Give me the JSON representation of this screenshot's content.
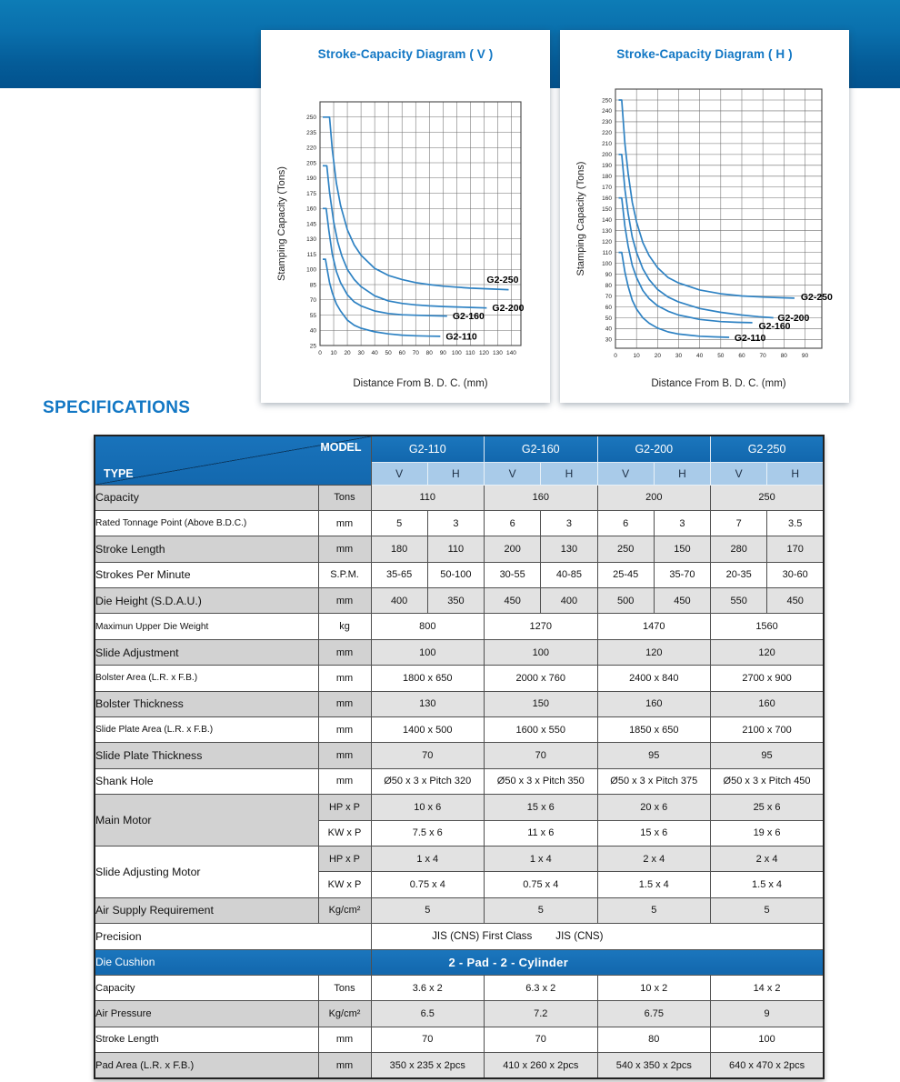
{
  "page": {
    "banner_color_top": "#0d7cb6",
    "banner_color_bottom": "#02528e",
    "accent_blue": "#1277c4",
    "header_blue": "#1571b8",
    "subheader_blue": "#a9cbe9",
    "curve_color": "#2e82c3"
  },
  "spec_heading": "SPECIFICATIONS",
  "chart_data": [
    {
      "id": "v",
      "type": "line",
      "title": "Stroke-Capacity Diagram ( V )",
      "xlabel": "Distance From B. D. C. (mm)",
      "ylabel": "Stamping Capacity  (Tons)",
      "x_ticks": [
        0,
        10,
        20,
        30,
        40,
        50,
        60,
        70,
        80,
        90,
        100,
        110,
        120,
        130,
        140
      ],
      "y_ticks": [
        25,
        40,
        55,
        70,
        85,
        100,
        115,
        130,
        145,
        160,
        175,
        190,
        205,
        220,
        235,
        250
      ],
      "x_range": [
        0,
        147
      ],
      "y_range": [
        25,
        265
      ],
      "grid": true,
      "series": [
        {
          "name": "G2-110",
          "label_at": [
            92,
            34
          ],
          "points": [
            [
              2,
              110
            ],
            [
              4,
              110
            ],
            [
              5.5,
              98
            ],
            [
              7,
              87
            ],
            [
              9,
              77
            ],
            [
              12,
              66
            ],
            [
              15,
              59
            ],
            [
              20,
              50
            ],
            [
              25,
              45
            ],
            [
              30,
              42
            ],
            [
              40,
              38.5
            ],
            [
              50,
              36.5
            ],
            [
              60,
              35.2
            ],
            [
              70,
              34.6
            ],
            [
              80,
              34.2
            ],
            [
              88,
              34
            ]
          ]
        },
        {
          "name": "G2-160",
          "label_at": [
            97,
            54
          ],
          "points": [
            [
              2,
              160
            ],
            [
              4.5,
              160
            ],
            [
              6.5,
              138
            ],
            [
              9,
              115
            ],
            [
              12,
              98
            ],
            [
              15,
              87
            ],
            [
              20,
              75
            ],
            [
              25,
              68
            ],
            [
              30,
              64
            ],
            [
              40,
              59
            ],
            [
              50,
              56.5
            ],
            [
              60,
              55.3
            ],
            [
              70,
              54.8
            ],
            [
              80,
              54.4
            ],
            [
              93,
              54
            ]
          ]
        },
        {
          "name": "G2-200",
          "label_at": [
            126,
            62
          ],
          "points": [
            [
              2,
              202
            ],
            [
              5,
              202
            ],
            [
              7,
              176
            ],
            [
              10,
              147
            ],
            [
              13,
              127
            ],
            [
              16,
              113
            ],
            [
              20,
              100
            ],
            [
              25,
              90
            ],
            [
              30,
              83
            ],
            [
              40,
              74
            ],
            [
              50,
              69
            ],
            [
              60,
              66.5
            ],
            [
              70,
              65
            ],
            [
              80,
              64
            ],
            [
              90,
              63.4
            ],
            [
              100,
              63
            ],
            [
              110,
              62.5
            ],
            [
              122,
              62
            ]
          ]
        },
        {
          "name": "G2-250",
          "label_at": [
            122,
            90
          ],
          "points": [
            [
              2,
              250
            ],
            [
              7,
              250
            ],
            [
              9,
              218
            ],
            [
              12,
              185
            ],
            [
              15,
              163
            ],
            [
              20,
              139
            ],
            [
              25,
              124
            ],
            [
              30,
              114
            ],
            [
              40,
              101
            ],
            [
              50,
              94
            ],
            [
              60,
              90
            ],
            [
              70,
              87
            ],
            [
              80,
              85
            ],
            [
              90,
              83.5
            ],
            [
              100,
              82.5
            ],
            [
              110,
              81.5
            ],
            [
              120,
              81
            ],
            [
              130,
              80.4
            ],
            [
              138,
              80
            ]
          ]
        }
      ]
    },
    {
      "id": "h",
      "type": "line",
      "title": "Stroke-Capacity Diagram ( H )",
      "xlabel": "Distance From B. D. C. (mm)",
      "ylabel": "Stamping Capacity  (Tons)",
      "x_ticks": [
        0,
        10,
        20,
        30,
        40,
        50,
        60,
        70,
        80,
        90
      ],
      "y_ticks": [
        30,
        40,
        50,
        60,
        70,
        80,
        90,
        100,
        110,
        120,
        130,
        140,
        150,
        160,
        170,
        180,
        190,
        200,
        210,
        220,
        230,
        240,
        250
      ],
      "x_range": [
        0,
        98
      ],
      "y_range": [
        22,
        260
      ],
      "grid": true,
      "series": [
        {
          "name": "G2-110",
          "label_at": [
            56.5,
            31.5
          ],
          "points": [
            [
              1.5,
              110
            ],
            [
              3,
              110
            ],
            [
              4.5,
              92
            ],
            [
              6,
              79
            ],
            [
              8,
              66
            ],
            [
              10,
              58
            ],
            [
              13,
              50
            ],
            [
              16,
              45
            ],
            [
              20,
              40.5
            ],
            [
              25,
              37
            ],
            [
              30,
              35
            ],
            [
              40,
              33
            ],
            [
              47,
              32.4
            ],
            [
              54,
              32
            ]
          ]
        },
        {
          "name": "G2-160",
          "label_at": [
            68,
            42.5
          ],
          "points": [
            [
              1.5,
              160
            ],
            [
              3,
              160
            ],
            [
              4.5,
              134
            ],
            [
              6,
              116
            ],
            [
              8,
              98
            ],
            [
              10,
              87
            ],
            [
              13,
              75
            ],
            [
              16,
              67.5
            ],
            [
              20,
              61
            ],
            [
              25,
              56
            ],
            [
              30,
              52.5
            ],
            [
              40,
              48.5
            ],
            [
              50,
              46.5
            ],
            [
              58,
              45.8
            ],
            [
              65,
              45.5
            ]
          ]
        },
        {
          "name": "G2-200",
          "label_at": [
            77,
            50
          ],
          "points": [
            [
              1.5,
              200
            ],
            [
              3,
              200
            ],
            [
              4.5,
              168
            ],
            [
              6,
              146
            ],
            [
              8,
              124
            ],
            [
              10,
              110
            ],
            [
              13,
              95
            ],
            [
              16,
              85
            ],
            [
              20,
              76
            ],
            [
              25,
              69
            ],
            [
              30,
              64.5
            ],
            [
              40,
              58.5
            ],
            [
              50,
              55
            ],
            [
              60,
              52.5
            ],
            [
              68,
              51
            ],
            [
              75,
              50
            ]
          ]
        },
        {
          "name": "G2-250",
          "label_at": [
            88,
            69
          ],
          "points": [
            [
              1.5,
              250
            ],
            [
              3,
              250
            ],
            [
              4.5,
              210
            ],
            [
              6,
              183
            ],
            [
              8,
              156
            ],
            [
              10,
              138
            ],
            [
              13,
              119
            ],
            [
              16,
              107
            ],
            [
              20,
              96
            ],
            [
              25,
              87
            ],
            [
              30,
              82
            ],
            [
              40,
              75.5
            ],
            [
              50,
              72
            ],
            [
              60,
              70
            ],
            [
              70,
              69
            ],
            [
              78,
              68.4
            ],
            [
              85,
              68
            ]
          ]
        }
      ]
    }
  ],
  "specifications": {
    "corner": {
      "model": "MODEL",
      "type": "TYPE"
    },
    "models": [
      "G2-110",
      "G2-160",
      "G2-200",
      "G2-250"
    ],
    "subcols": [
      "V",
      "H"
    ],
    "rows": [
      {
        "label": "Capacity",
        "unit": "Tons",
        "span": "model",
        "values": [
          "110",
          "160",
          "200",
          "250"
        ],
        "shade": "gray"
      },
      {
        "label": "Rated Tonnage Point (Above B.D.C.)",
        "unit": "mm",
        "span": "sub",
        "values": [
          "5",
          "3",
          "6",
          "3",
          "6",
          "3",
          "7",
          "3.5"
        ],
        "shade": "white",
        "small": true
      },
      {
        "label": "Stroke Length",
        "unit": "mm",
        "span": "sub",
        "values": [
          "180",
          "110",
          "200",
          "130",
          "250",
          "150",
          "280",
          "170"
        ],
        "shade": "gray"
      },
      {
        "label": "Strokes Per Minute",
        "unit": "S.P.M.",
        "span": "sub",
        "values": [
          "35-65",
          "50-100",
          "30-55",
          "40-85",
          "25-45",
          "35-70",
          "20-35",
          "30-60"
        ],
        "shade": "white"
      },
      {
        "label": "Die Height (S.D.A.U.)",
        "unit": "mm",
        "span": "sub",
        "values": [
          "400",
          "350",
          "450",
          "400",
          "500",
          "450",
          "550",
          "450"
        ],
        "shade": "gray"
      },
      {
        "label": "Maximun Upper Die Weight",
        "unit": "kg",
        "span": "model",
        "values": [
          "800",
          "1270",
          "1470",
          "1560"
        ],
        "shade": "white",
        "small": true
      },
      {
        "label": "Slide Adjustment",
        "unit": "mm",
        "span": "model",
        "values": [
          "100",
          "100",
          "120",
          "120"
        ],
        "shade": "gray"
      },
      {
        "label": "Bolster Area (L.R. x F.B.)",
        "unit": "mm",
        "span": "model",
        "values": [
          "1800 x 650",
          "2000 x 760",
          "2400 x 840",
          "2700 x 900"
        ],
        "shade": "white",
        "small": true
      },
      {
        "label": "Bolster  Thickness",
        "unit": "mm",
        "span": "model",
        "values": [
          "130",
          "150",
          "160",
          "160"
        ],
        "shade": "gray"
      },
      {
        "label": "Slide Plate Area (L.R. x F.B.)",
        "unit": "mm",
        "span": "model",
        "values": [
          "1400 x 500",
          "1600 x 550",
          "1850 x 650",
          "2100 x 700"
        ],
        "shade": "white",
        "small": true
      },
      {
        "label": "Slide Plate Thickness",
        "unit": "mm",
        "span": "model",
        "values": [
          "70",
          "70",
          "95",
          "95"
        ],
        "shade": "gray"
      },
      {
        "label": "Shank Hole",
        "unit": "mm",
        "span": "model",
        "values": [
          "Ø50 x 3 x Pitch 320",
          "Ø50 x 3 x Pitch 350",
          "Ø50 x 3 x Pitch 375",
          "Ø50 x 3 x Pitch 450"
        ],
        "shade": "white"
      },
      {
        "label": "Main Motor",
        "rowspan": 2,
        "label_shade": "gray",
        "unit": "HP x P",
        "span": "model",
        "values": [
          "10 x 6",
          "15 x 6",
          "20 x 6",
          "25 x 6"
        ],
        "shade": "gray"
      },
      {
        "cont": true,
        "unit": "KW x P",
        "span": "model",
        "values": [
          "7.5 x 6",
          "11 x 6",
          "15 x 6",
          "19 x 6"
        ],
        "shade": "white"
      },
      {
        "label": "Slide Adjusting Motor",
        "rowspan": 2,
        "label_shade": "white",
        "unit": "HP x P",
        "span": "model",
        "values": [
          "1 x 4",
          "1 x 4",
          "2 x 4",
          "2 x 4"
        ],
        "shade": "gray"
      },
      {
        "cont": true,
        "unit": "KW x P",
        "span": "model",
        "values": [
          "0.75 x 4",
          "0.75 x 4",
          "1.5 x 4",
          "1.5 x 4"
        ],
        "shade": "white"
      },
      {
        "label": "Air Supply Requirement",
        "unit": "Kg/cm²",
        "span": "model",
        "values": [
          "5",
          "5",
          "5",
          "5"
        ],
        "shade": "gray"
      },
      {
        "label": "Precision",
        "merge_unit": true,
        "span": "all",
        "precision": true,
        "values": [
          "JIS (CNS) First Class",
          "JIS (CNS)"
        ],
        "shade": "white"
      },
      {
        "label": "Die Cushion",
        "merge_unit": true,
        "span": "all",
        "cushion_header": true,
        "values": [
          "2 - Pad - 2 - Cylinder"
        ],
        "shade": "blue"
      },
      {
        "label": "Capacity",
        "unit": "Tons",
        "span": "model",
        "values": [
          "3.6 x 2",
          "6.3 x 2",
          "10 x 2",
          "14 x 2"
        ],
        "shade": "white",
        "med": true
      },
      {
        "label": "Air Pressure",
        "unit": "Kg/cm²",
        "span": "model",
        "values": [
          "6.5",
          "7.2",
          "6.75",
          "9"
        ],
        "shade": "gray",
        "med": true
      },
      {
        "label": "Stroke Length",
        "unit": "mm",
        "span": "model",
        "values": [
          "70",
          "70",
          "80",
          "100"
        ],
        "shade": "white",
        "med": true
      },
      {
        "label": "Pad Area (L.R. x F.B.)",
        "unit": "mm",
        "span": "model",
        "values": [
          "350 x 235 x 2pcs",
          "410 x 260 x 2pcs",
          "540 x 350 x 2pcs",
          "640 x 470 x 2pcs"
        ],
        "shade": "gray",
        "med": true
      }
    ]
  }
}
